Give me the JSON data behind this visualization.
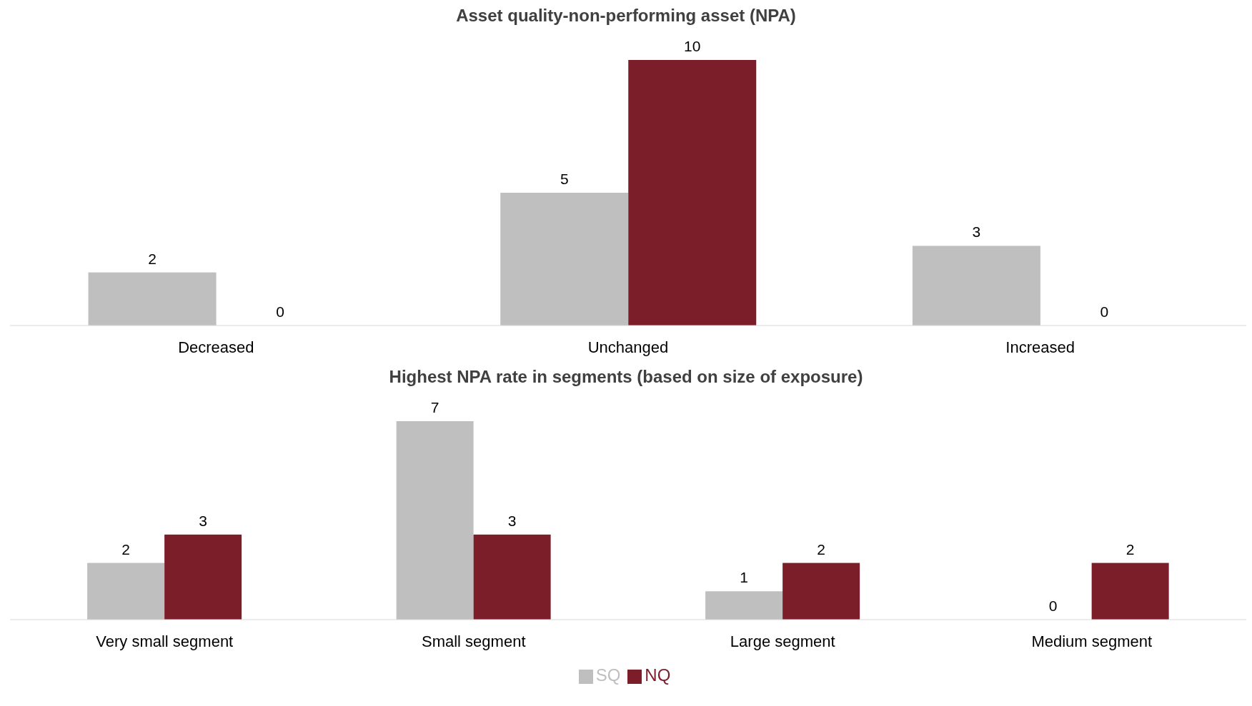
{
  "chart_data": [
    {
      "type": "bar",
      "title": "Asset quality-non-performing asset (NPA)",
      "categories": [
        "Decreased",
        "Unchanged",
        "Increased"
      ],
      "series": [
        {
          "color": "#bfbfbf",
          "values": [
            2,
            5,
            3
          ]
        },
        {
          "color": "#7b1e2a",
          "values": [
            0,
            10,
            0
          ]
        }
      ],
      "data_labels": true
    },
    {
      "type": "bar",
      "title": "Highest NPA rate in segments (based on size of exposure)",
      "categories": [
        "Very small segment",
        "Small segment",
        "Large segment",
        "Medium segment"
      ],
      "series": [
        {
          "name": "SQ",
          "color": "#bfbfbf",
          "values": [
            2,
            7,
            1,
            0
          ]
        },
        {
          "name": "NQ",
          "color": "#7b1e2a",
          "values": [
            3,
            3,
            2,
            2
          ]
        }
      ],
      "data_labels": true,
      "legend": "bottom"
    }
  ]
}
